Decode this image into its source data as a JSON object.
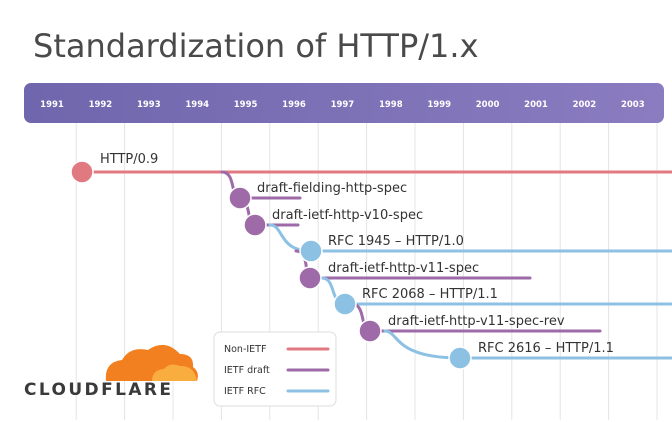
{
  "title": "Standardization of HTTP/1.x",
  "years": [
    "1991",
    "1992",
    "1993",
    "1994",
    "1995",
    "1996",
    "1997",
    "1998",
    "1999",
    "2000",
    "2001",
    "2002",
    "2003"
  ],
  "events": [
    {
      "label": "HTTP/0.9",
      "kind": "non_ietf"
    },
    {
      "label": "draft-fielding-http-spec",
      "kind": "ietf_draft"
    },
    {
      "label": "draft-ietf-http-v10-spec",
      "kind": "ietf_draft"
    },
    {
      "label": "RFC 1945 – HTTP/1.0",
      "kind": "ietf_rfc"
    },
    {
      "label": "draft-ietf-http-v11-spec",
      "kind": "ietf_draft"
    },
    {
      "label": "RFC 2068 – HTTP/1.1",
      "kind": "ietf_rfc"
    },
    {
      "label": "draft-ietf-http-v11-spec-rev",
      "kind": "ietf_draft"
    },
    {
      "label": "RFC 2616 – HTTP/1.1",
      "kind": "ietf_rfc"
    }
  ],
  "legend": [
    {
      "label": "Non-IETF",
      "kind": "non_ietf"
    },
    {
      "label": "IETF draft",
      "kind": "ietf_draft"
    },
    {
      "label": "IETF RFC",
      "kind": "ietf_rfc"
    }
  ],
  "colors": {
    "non_ietf": "#e07a80",
    "ietf_draft": "#9e6aa8",
    "ietf_rfc": "#8cc1e4",
    "banner": "#7f70b6",
    "logo_orange": "#f38020"
  },
  "brand": "CLOUDFLARE"
}
